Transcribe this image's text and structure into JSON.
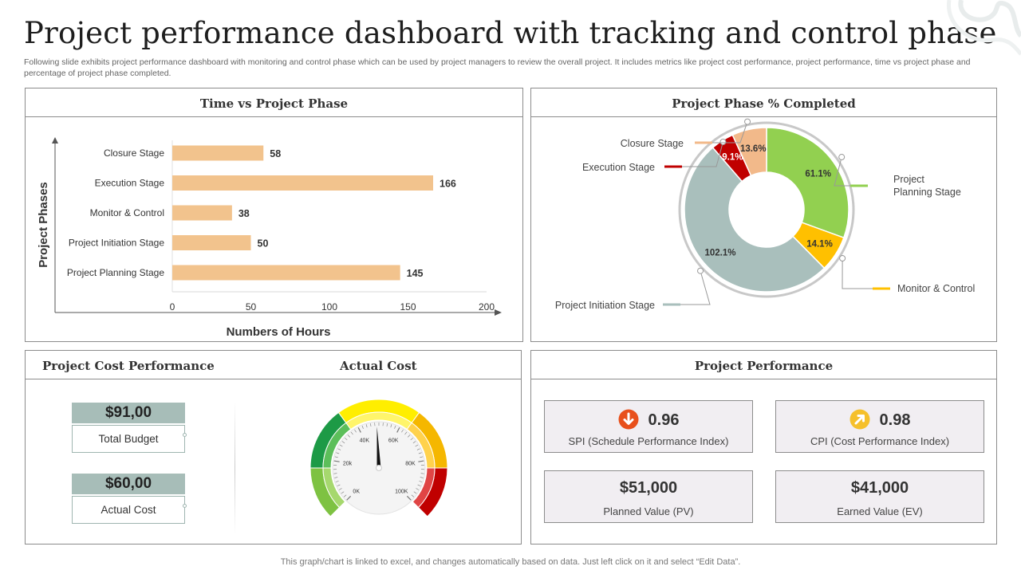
{
  "header": {
    "title": "Project performance dashboard with tracking and control phase",
    "subtitle": "Following slide exhibits project performance dashboard with monitoring and control phase which can be used by project managers to review the overall project. It includes metrics like project cost performance, project performance, time vs project phase and percentage of project phase completed."
  },
  "time_panel": {
    "title": "Time vs Project Phase"
  },
  "phase_panel": {
    "title": "Project Phase % Completed"
  },
  "cost_panel": {
    "title": "Project Cost Performance",
    "actual_cost_title": "Actual Cost",
    "total_budget_value": "$91,00",
    "total_budget_label": "Total Budget",
    "actual_cost_value": "$60,00",
    "actual_cost_label": "Actual Cost",
    "gauge_ticks": [
      "0K",
      "20k",
      "40K",
      "60K",
      "80K",
      "100K"
    ],
    "gauge_value_fraction": 0.49
  },
  "perf_panel": {
    "title": "Project Performance",
    "spi_value": "0.96",
    "spi_label": "SPI (Schedule Performance Index)",
    "cpi_value": "0.98",
    "cpi_label": "CPI (Cost Performance Index)",
    "pv_value": "$51,000",
    "pv_label": "Planned Value (PV)",
    "ev_value": "$41,000",
    "ev_label": "Earned Value (EV)"
  },
  "footer": {
    "text": "This graph/chart is linked to excel, and changes automatically based on data. Just left click on it and select “Edit Data”."
  },
  "colors": {
    "bar": "#f2c38d",
    "planning": "#92d050",
    "monitor": "#ffc000",
    "initiation": "#a9bfbc",
    "execution": "#c00000",
    "closure": "#f2b98a",
    "spi_icon": "#e8501c",
    "cpi_icon": "#f5c02b"
  },
  "icons": {
    "spi": "arrow-down-circle-icon",
    "cpi": "arrow-up-right-circle-icon"
  },
  "chart_data": [
    {
      "type": "bar",
      "orientation": "horizontal",
      "title": "Time vs Project Phase",
      "xlabel": "Numbers of Hours",
      "ylabel": "Project Phases",
      "categories": [
        "Closure Stage",
        "Execution Stage",
        "Monitor & Control",
        "Project Initiation Stage",
        "Project Planning Stage"
      ],
      "values": [
        58,
        166,
        38,
        50,
        145
      ],
      "xlim": [
        0,
        200
      ],
      "xticks": [
        "0",
        "50",
        "100",
        "150",
        "200"
      ],
      "grid": false
    },
    {
      "type": "pie",
      "title": "Project Phase % Completed",
      "categories": [
        "Project Planning Stage",
        "Monitor & Control",
        "Project Initiation Stage",
        "Execution Stage",
        "Closure Stage"
      ],
      "label_lines": [
        [
          "Project",
          "Planning Stage"
        ],
        [
          "Monitor & Control"
        ],
        [
          "Project Initiation Stage"
        ],
        [
          "Execution Stage"
        ],
        [
          "Closure Stage"
        ]
      ],
      "values": [
        61.1,
        14.1,
        102.1,
        9.1,
        13.6
      ],
      "value_labels": [
        "61.1%",
        "14.1%",
        "102.1%",
        "9.1%",
        "13.6%"
      ]
    }
  ]
}
